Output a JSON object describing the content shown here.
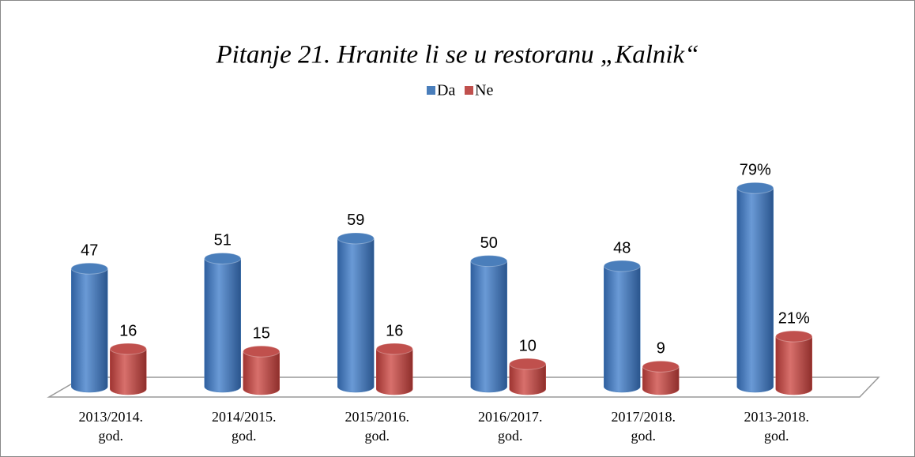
{
  "chart_data": {
    "type": "bar3d",
    "title": "Pitanje 21. Hranite li se u restoranu „Kalnik“",
    "categories": [
      "2013/2014. god.",
      "2014/2015. god.",
      "2015/2016. god.",
      "2016/2017. god.",
      "2017/2018. god.",
      "2013-2018. god."
    ],
    "series": [
      {
        "name": "Da",
        "color": "#4a7ebb",
        "values": [
          47,
          51,
          59,
          50,
          48,
          79
        ],
        "value_labels": [
          "47",
          "51",
          "59",
          "50",
          "48",
          "79%"
        ]
      },
      {
        "name": "Ne",
        "color": "#c0504d",
        "values": [
          16,
          15,
          16,
          10,
          9,
          21
        ],
        "value_labels": [
          "16",
          "15",
          "16",
          "10",
          "9",
          "21%"
        ]
      }
    ],
    "ylim": [
      0,
      80
    ],
    "legend": "top"
  }
}
